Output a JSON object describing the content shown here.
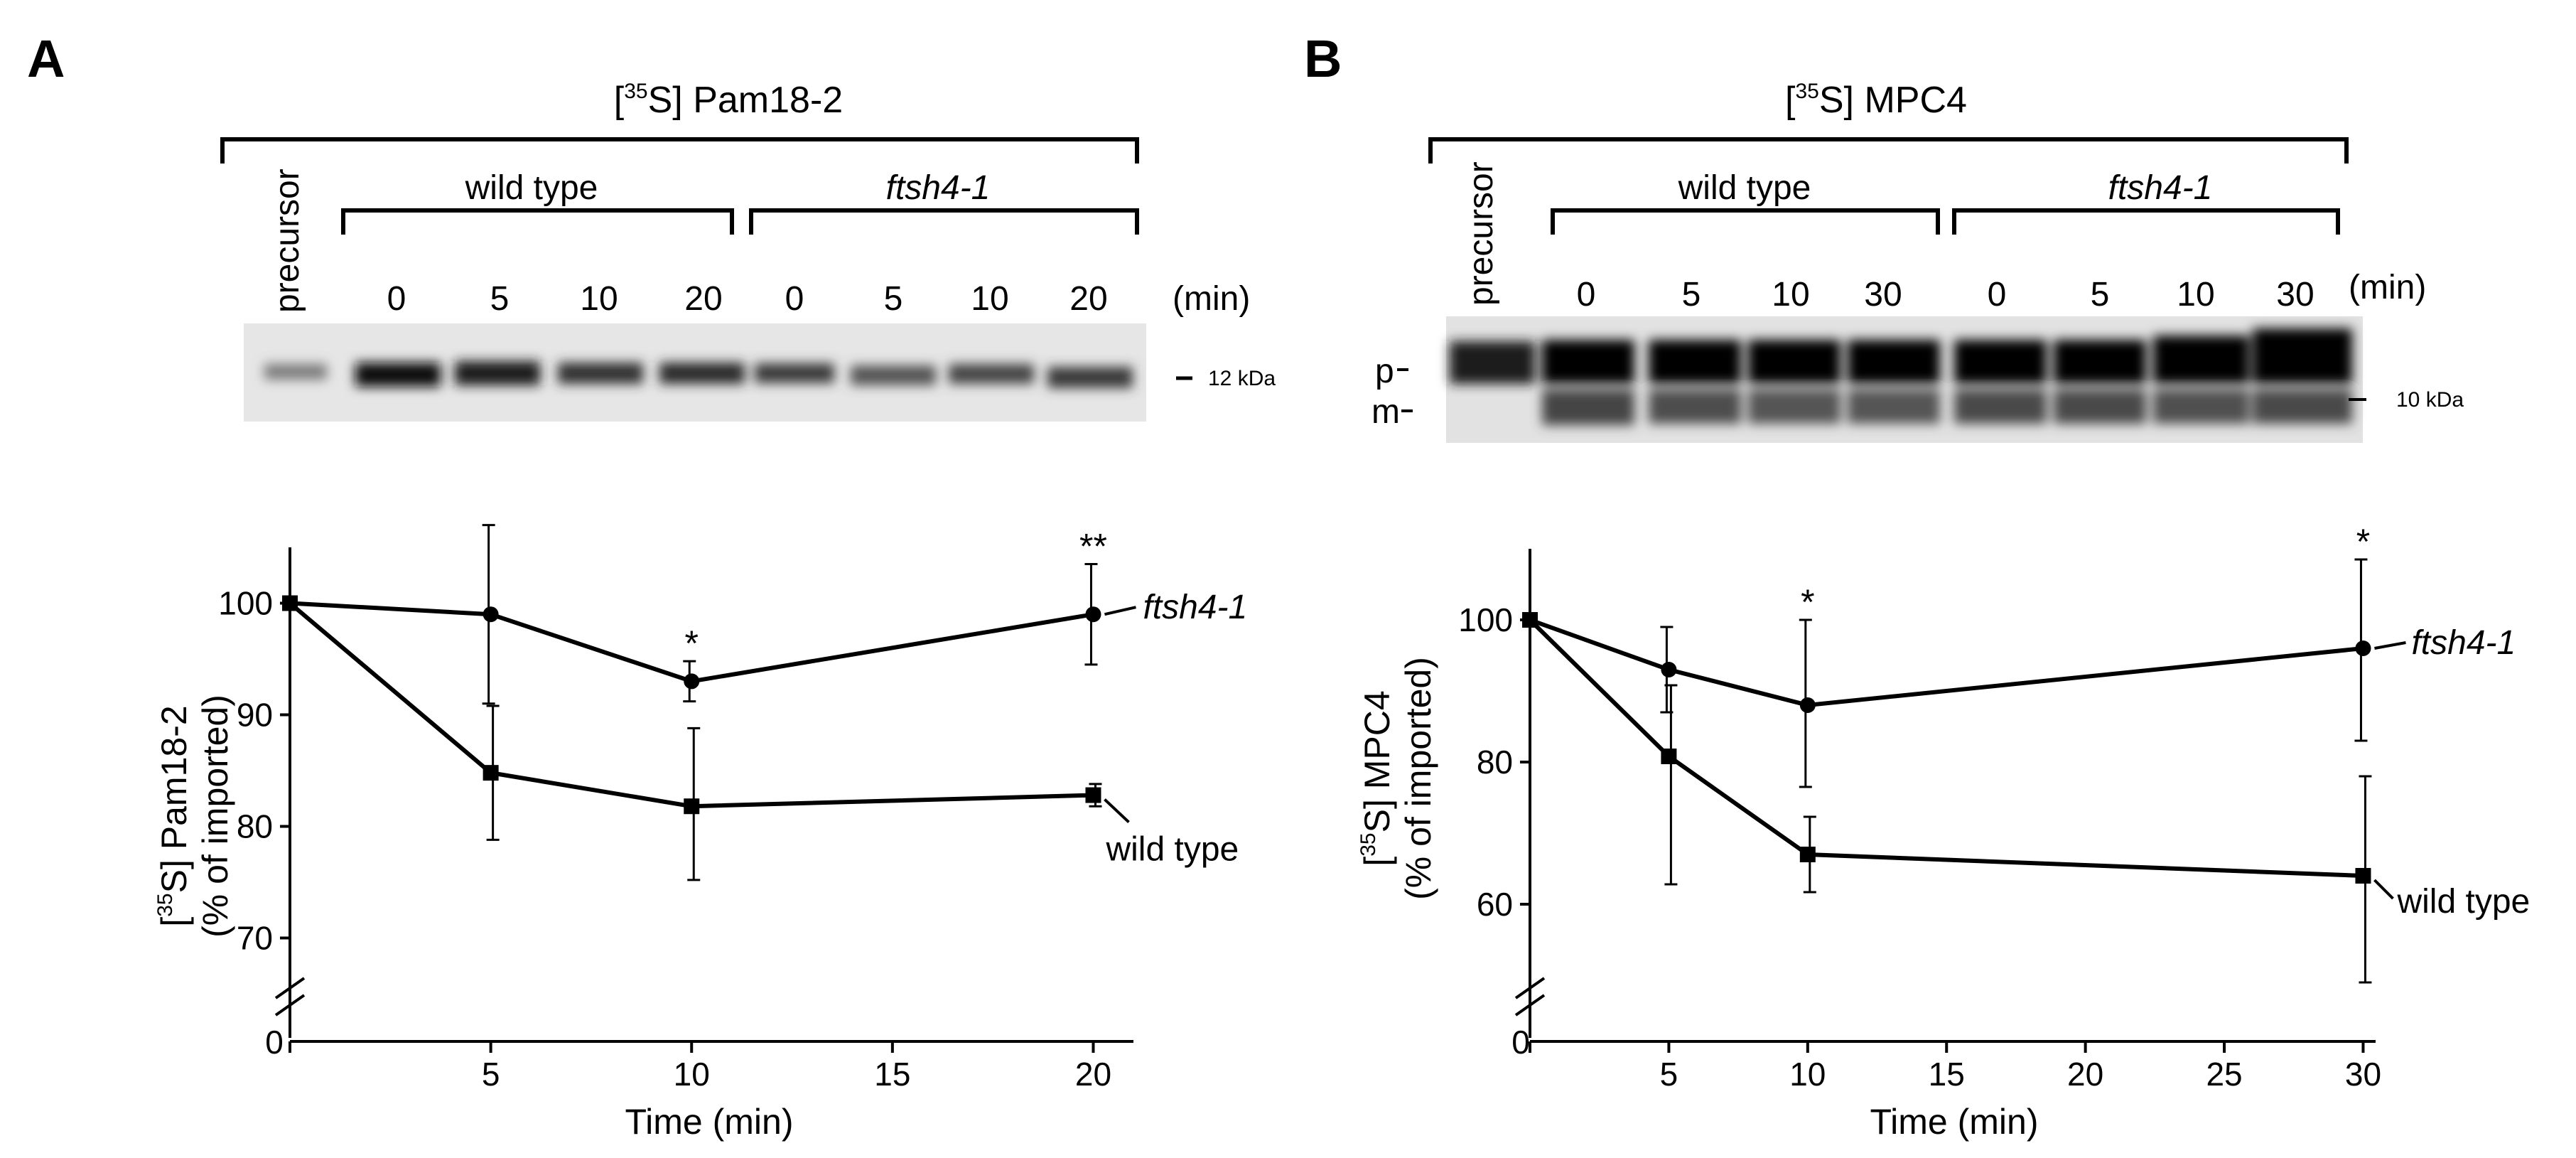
{
  "panels": {
    "A": {
      "letter": "A",
      "protein_title": "Pam18-2",
      "isotope": "35",
      "precursor_label": "precursor",
      "group_labels": [
        "wild type",
        "ftsh4-1"
      ],
      "lane_times": [
        "0",
        "5",
        "10",
        "20",
        "0",
        "5",
        "10",
        "20"
      ],
      "unit_label": "(min)",
      "marker_label": "12 kDa"
    },
    "B": {
      "letter": "B",
      "protein_title": "MPC4",
      "isotope": "35",
      "precursor_label": "precursor",
      "group_labels": [
        "wild type",
        "ftsh4-1"
      ],
      "lane_times": [
        "0",
        "5",
        "10",
        "30",
        "0",
        "5",
        "10",
        "30"
      ],
      "unit_label": "(min)",
      "marker_label": "10 kDa",
      "band_labels": [
        "p",
        "m"
      ]
    }
  },
  "chart_data": [
    {
      "panel": "A",
      "type": "line",
      "xlabel": "Time (min)",
      "ylabel_line1_suffix": "Pam18-2",
      "ylabel_line2": "(% of imported)",
      "xlim": [
        0,
        21
      ],
      "x_ticks": [
        0,
        5,
        10,
        15,
        20
      ],
      "ylim": [
        65,
        105
      ],
      "y_ticks": [
        70,
        80,
        90,
        100
      ],
      "y_zero_label": "0",
      "axis_break": true,
      "series": [
        {
          "name": "ftsh4-1",
          "marker": "circle",
          "x": [
            0,
            5,
            10,
            20
          ],
          "y": [
            100,
            99,
            93,
            99
          ],
          "err_upper": [
            0,
            8,
            1.8,
            4.5
          ],
          "err_lower": [
            0,
            8,
            1.8,
            4.5
          ]
        },
        {
          "name": "wild type",
          "marker": "square",
          "x": [
            0,
            5,
            10,
            20
          ],
          "y": [
            100,
            84.8,
            81.8,
            82.8
          ],
          "err_upper": [
            0,
            6,
            7,
            1
          ],
          "err_lower": [
            0,
            6,
            6.6,
            1
          ]
        }
      ],
      "annotations": [
        {
          "text": "*",
          "x": 10
        },
        {
          "text": "**",
          "x": 20
        }
      ]
    },
    {
      "panel": "B",
      "type": "line",
      "xlabel": "Time (min)",
      "ylabel_line1_suffix": "MPC4",
      "ylabel_line2": "(% of imported)",
      "xlim": [
        0,
        30.5
      ],
      "x_ticks": [
        0,
        5,
        10,
        15,
        20,
        25,
        30
      ],
      "ylim": [
        50,
        110
      ],
      "y_ticks": [
        60,
        80,
        100
      ],
      "y_zero_label": "0",
      "axis_break": true,
      "series": [
        {
          "name": "ftsh4-1",
          "marker": "circle",
          "x": [
            0,
            5,
            10,
            30
          ],
          "y": [
            100,
            93,
            88,
            96
          ],
          "err_upper": [
            0,
            6,
            12,
            12.5
          ],
          "err_lower": [
            0,
            6,
            11.5,
            13
          ]
        },
        {
          "name": "wild type",
          "marker": "square",
          "x": [
            0,
            5,
            10,
            30
          ],
          "y": [
            100,
            80.8,
            67,
            64
          ],
          "err_upper": [
            0,
            10,
            5.3,
            14
          ],
          "err_lower": [
            0,
            18,
            5.3,
            15
          ]
        }
      ],
      "annotations": [
        {
          "text": "*",
          "x": 10
        },
        {
          "text": "*",
          "x": 30
        }
      ]
    }
  ]
}
